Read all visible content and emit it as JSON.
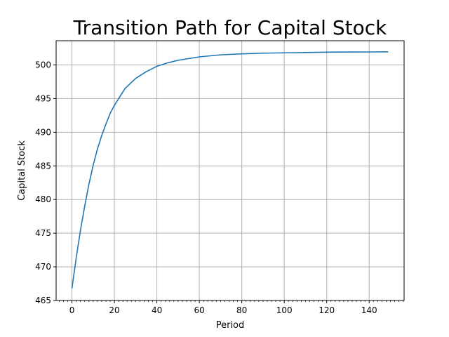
{
  "chart_data": {
    "type": "line",
    "title": "Transition Path for Capital Stock",
    "xlabel": "Period",
    "ylabel": "Capital Stock",
    "xlim": [
      -7.45,
      156.45
    ],
    "ylim": [
      465.0,
      503.6
    ],
    "xticks": [
      0,
      20,
      40,
      60,
      80,
      100,
      120,
      140
    ],
    "xtick_labels": [
      "0",
      "20",
      "40",
      "60",
      "80",
      "100",
      "120",
      "140"
    ],
    "yticks": [
      465,
      470,
      475,
      480,
      485,
      490,
      495,
      500
    ],
    "ytick_labels": [
      "465",
      "470",
      "475",
      "480",
      "485",
      "490",
      "495",
      "500"
    ],
    "x_minor_step": 2,
    "grid": true,
    "color": "#1f77b4",
    "series": [
      {
        "x": [
          0,
          2,
          4,
          6,
          8,
          10,
          12,
          14,
          16,
          18,
          20,
          25,
          30,
          35,
          40,
          45,
          50,
          60,
          70,
          80,
          90,
          100,
          110,
          120,
          130,
          140,
          149
        ],
        "y": [
          466.8,
          471.3,
          475.4,
          479.0,
          482.3,
          485.1,
          487.5,
          489.5,
          491.2,
          492.8,
          494.0,
          496.5,
          498.0,
          499.0,
          499.8,
          500.3,
          500.7,
          501.2,
          501.5,
          501.65,
          501.75,
          501.8,
          501.85,
          501.9,
          501.92,
          501.93,
          501.95
        ]
      }
    ]
  }
}
